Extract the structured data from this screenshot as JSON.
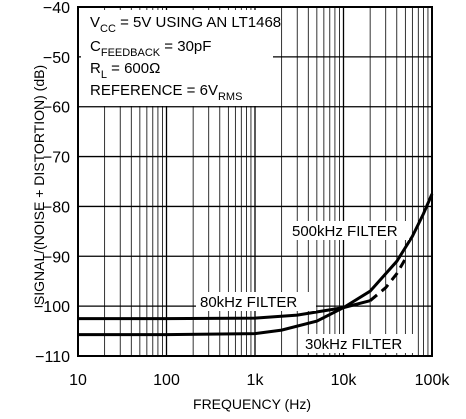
{
  "chart_data": {
    "type": "line",
    "xlabel": "FREQUENCY (Hz)",
    "ylabel": "SIGNAL/(NOISE + DISTORTION) (dB)",
    "x_scale": "log",
    "xlim": [
      10,
      100000
    ],
    "ylim": [
      -110,
      -40
    ],
    "x_ticks": [
      10,
      100,
      1000,
      10000,
      100000
    ],
    "x_tick_labels": [
      "10",
      "100",
      "1k",
      "10k",
      "100k"
    ],
    "y_ticks": [
      -40,
      -50,
      -60,
      -70,
      -80,
      -90,
      -100,
      -110
    ],
    "y_tick_labels": [
      "−40",
      "−50",
      "−60",
      "−70",
      "−80",
      "−90",
      "−100",
      "−110"
    ],
    "grid": true,
    "annotation_lines": [
      {
        "main": "V",
        "sub": "CC",
        "rest": " = 5V USING AN LT1468"
      },
      {
        "main": "C",
        "sub": "FEEDBACK",
        "rest": " = 30pF"
      },
      {
        "main": "R",
        "sub": "L",
        "rest": " = 600Ω"
      },
      {
        "main": "REFERENCE = 6V",
        "sub": "RMS",
        "rest": ""
      }
    ],
    "series": [
      {
        "name": "80kHz FILTER",
        "style": "solid",
        "x": [
          10,
          100,
          1000,
          3000,
          10000,
          20000
        ],
        "y": [
          -102.5,
          -102.5,
          -102.4,
          -101.8,
          -100.3,
          -98.9
        ]
      },
      {
        "name": "500kHz FILTER",
        "style": "dashed",
        "x": [
          20000,
          30000,
          40000,
          50000
        ],
        "y": [
          -98.9,
          -96.3,
          -93.5,
          -90.5
        ]
      },
      {
        "name": "30kHz FILTER",
        "style": "solid",
        "x": [
          10,
          100,
          1000,
          2000,
          5000,
          10000,
          20000,
          40000,
          60000,
          80000,
          100000
        ],
        "y": [
          -105.7,
          -105.7,
          -105.5,
          -104.8,
          -103,
          -100.3,
          -97,
          -91,
          -86,
          -81.5,
          -77.5
        ]
      }
    ]
  }
}
